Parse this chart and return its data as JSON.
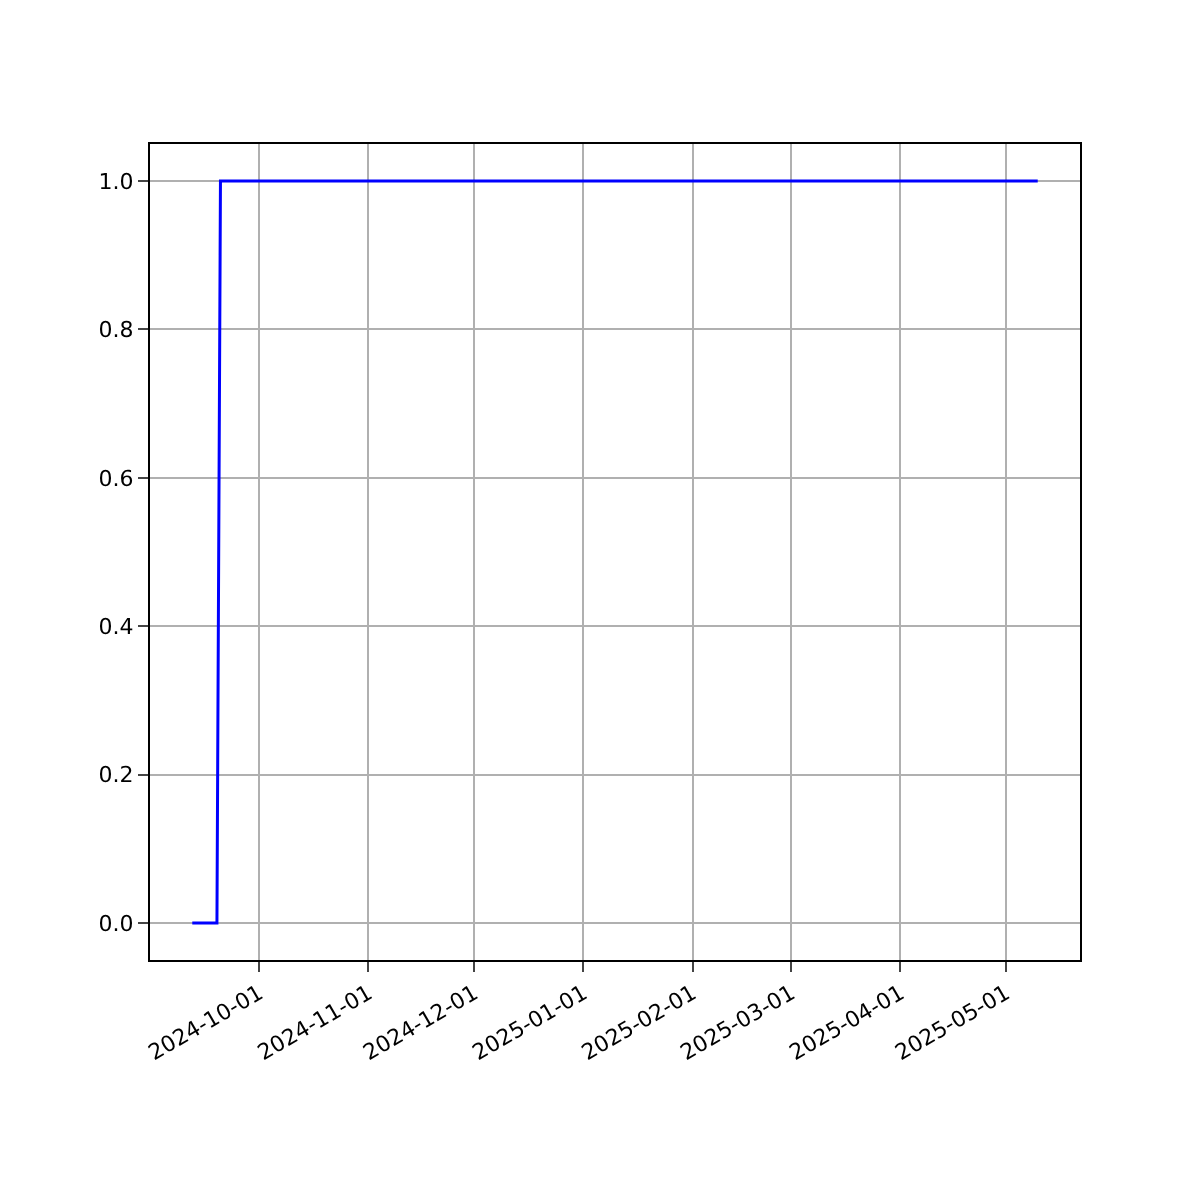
{
  "chart_data": {
    "type": "line",
    "x": [
      "2024-09-12",
      "2024-09-19",
      "2024-09-20",
      "2025-05-10"
    ],
    "series": [
      {
        "color": "#0000ff",
        "values": [
          0,
          0,
          1,
          1
        ]
      }
    ],
    "xlim": [
      "2024-08-31",
      "2025-05-22"
    ],
    "xticks": [
      "2024-10-01",
      "2024-11-01",
      "2024-12-01",
      "2025-01-01",
      "2025-02-01",
      "2025-03-01",
      "2025-04-01",
      "2025-05-01"
    ],
    "ylim": [
      -0.05,
      1.05
    ],
    "yticks": [
      {
        "value": 0,
        "label": "0.0"
      },
      {
        "value": 0.2,
        "label": "0.2"
      },
      {
        "value": 0.4,
        "label": "0.4"
      },
      {
        "value": 0.6,
        "label": "0.6"
      },
      {
        "value": 0.8,
        "label": "0.8"
      },
      {
        "value": 1,
        "label": "1.0"
      }
    ],
    "grid": true,
    "legend": false,
    "marker": "none",
    "line_style": "solid"
  }
}
